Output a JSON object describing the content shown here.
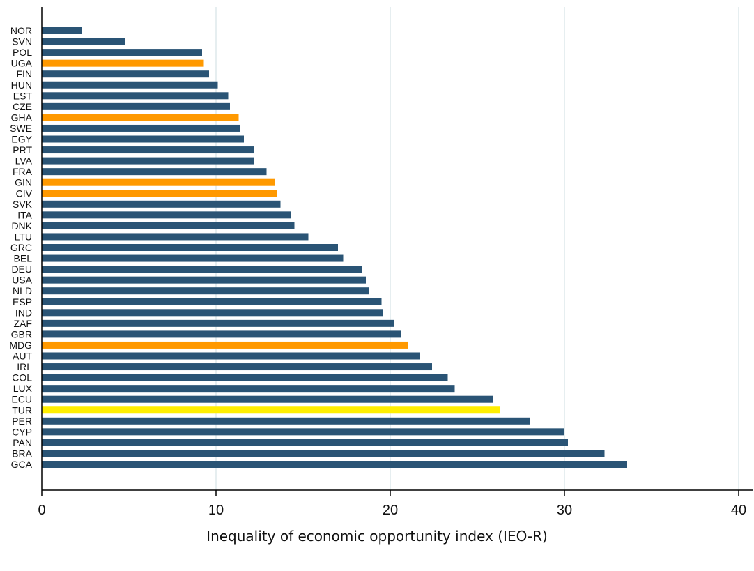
{
  "chart_data": {
    "type": "bar",
    "orientation": "horizontal",
    "title": "",
    "xlabel": "Inequality of economic opportunity index (IEO-R)",
    "ylabel": "",
    "xlim": [
      0,
      40
    ],
    "xticks": [
      "0",
      "10",
      "20",
      "30",
      "40"
    ],
    "grid": "vertical",
    "legend": "none",
    "colors": {
      "default": "#2a5475",
      "highlight_orange": "#ff9900",
      "highlight_yellow": "#ffee00",
      "grid": "#e6eef0",
      "axis": "#000000"
    },
    "categories": [
      "NOR",
      "SVN",
      "POL",
      "UGA",
      "FIN",
      "HUN",
      "EST",
      "CZE",
      "GHA",
      "SWE",
      "EGY",
      "PRT",
      "LVA",
      "FRA",
      "GIN",
      "CIV",
      "SVK",
      "ITA",
      "DNK",
      "LTU",
      "GRC",
      "BEL",
      "DEU",
      "USA",
      "NLD",
      "ESP",
      "IND",
      "ZAF",
      "GBR",
      "MDG",
      "AUT",
      "IRL",
      "COL",
      "LUX",
      "ECU",
      "TUR",
      "PER",
      "CYP",
      "PAN",
      "BRA",
      "GCA"
    ],
    "values": [
      2.3,
      4.8,
      9.2,
      9.3,
      9.6,
      10.1,
      10.7,
      10.8,
      11.3,
      11.4,
      11.6,
      12.2,
      12.2,
      12.9,
      13.4,
      13.5,
      13.7,
      14.3,
      14.5,
      15.3,
      17.0,
      17.3,
      18.4,
      18.6,
      18.8,
      19.5,
      19.6,
      20.2,
      20.6,
      21.0,
      21.7,
      22.4,
      23.3,
      23.7,
      25.9,
      26.3,
      28.0,
      30.0,
      30.2,
      32.3,
      33.6
    ],
    "highlight": {
      "UGA": "orange",
      "GHA": "orange",
      "GIN": "orange",
      "CIV": "orange",
      "MDG": "orange",
      "TUR": "yellow"
    }
  }
}
